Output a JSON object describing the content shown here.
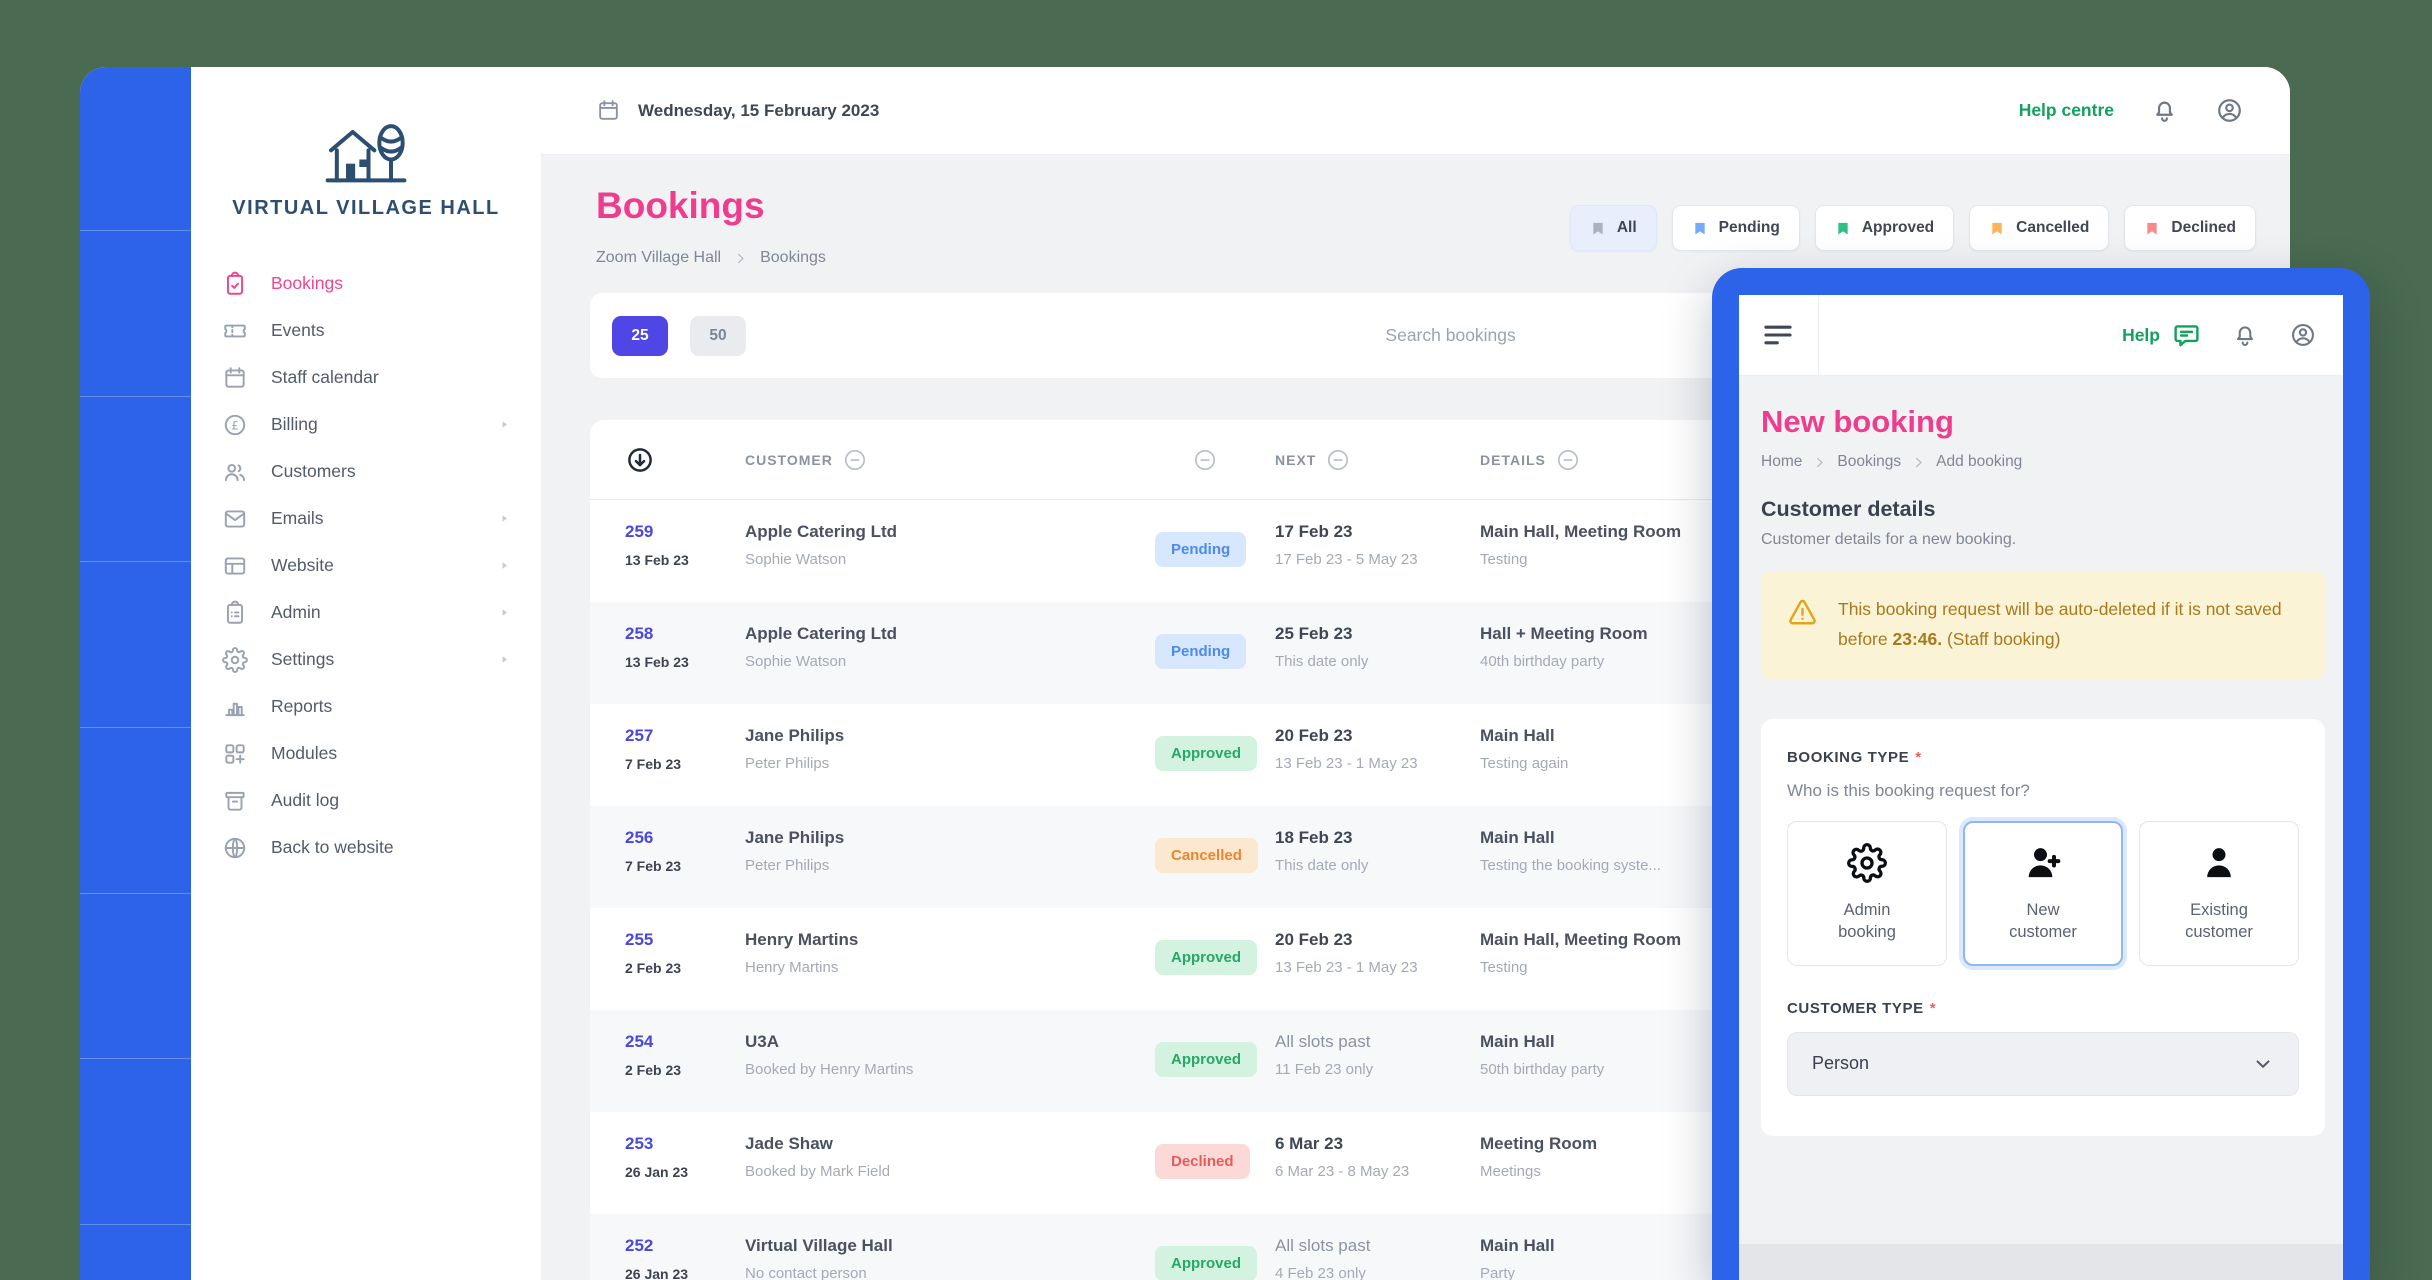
{
  "colors": {
    "background": "#4A6A51",
    "accent_blue": "#2D63E8",
    "accent_pink": "#EE3D8D",
    "accent_indigo": "#4F46E5",
    "accent_green": "#13A15F",
    "status_pending": "#4E8BEA",
    "status_approved": "#27A768",
    "status_cancelled": "#E8872F",
    "status_declined": "#E85B5B"
  },
  "topbar": {
    "date": "Wednesday, 15 February 2023",
    "help_centre": "Help centre",
    "icons": [
      "calendar-icon",
      "bell-icon",
      "user-circle-icon"
    ]
  },
  "sidebar": {
    "brand": "Virtual Village Hall",
    "logo_icon": "house-with-tree-icon",
    "items": [
      {
        "label": "Bookings",
        "icon": "clipboard-check",
        "active": true
      },
      {
        "label": "Events",
        "icon": "ticket"
      },
      {
        "label": "Staff calendar",
        "icon": "calendar"
      },
      {
        "label": "Billing",
        "icon": "pound-circle",
        "chevron": true
      },
      {
        "label": "Customers",
        "icon": "users"
      },
      {
        "label": "Emails",
        "icon": "mail",
        "chevron": true
      },
      {
        "label": "Website",
        "icon": "browser",
        "chevron": true
      },
      {
        "label": "Admin",
        "icon": "clipboard-list",
        "chevron": true
      },
      {
        "label": "Settings",
        "icon": "gear",
        "chevron": true
      },
      {
        "label": "Reports",
        "icon": "bar-chart"
      },
      {
        "label": "Modules",
        "icon": "grid-plus"
      },
      {
        "label": "Audit log",
        "icon": "archive"
      },
      {
        "label": "Back to website",
        "icon": "globe"
      }
    ]
  },
  "page": {
    "title": "Bookings",
    "breadcrumb": {
      "parent": "Zoom Village Hall",
      "current": "Bookings"
    },
    "filters": [
      {
        "label": "All",
        "color": "#AAB2BF",
        "selected": true
      },
      {
        "label": "Pending",
        "color": "#75A9F9"
      },
      {
        "label": "Approved",
        "color": "#2FC182"
      },
      {
        "label": "Cancelled",
        "color": "#F9B45C"
      },
      {
        "label": "Declined",
        "color": "#F58A8A"
      }
    ],
    "page_sizes": [
      {
        "label": "25",
        "selected": true
      },
      {
        "label": "50"
      }
    ],
    "search_placeholder": "Search bookings",
    "table": {
      "columns": {
        "customer": "CUSTOMER",
        "next": "NEXT",
        "details": "DETAILS"
      },
      "rows": [
        {
          "id": "259",
          "date": "13 Feb 23",
          "customer": "Apple Catering Ltd",
          "contact": "Sophie Watson",
          "status": "Pending",
          "status_key": "pending",
          "next": "17 Feb 23",
          "next_sub": "17 Feb 23 - 5 May 23",
          "details": "Main Hall, Meeting Room",
          "details_sub": "Testing"
        },
        {
          "id": "258",
          "date": "13 Feb 23",
          "customer": "Apple Catering Ltd",
          "contact": "Sophie Watson",
          "status": "Pending",
          "status_key": "pending",
          "next": "25 Feb 23",
          "next_sub": "This date only",
          "details": "Hall + Meeting Room",
          "details_sub": "40th birthday party"
        },
        {
          "id": "257",
          "date": "7 Feb 23",
          "customer": "Jane Philips",
          "contact": "Peter Philips",
          "status": "Approved",
          "status_key": "approved",
          "next": "20 Feb 23",
          "next_sub": "13 Feb 23 - 1 May 23",
          "details": "Main Hall",
          "details_sub": "Testing again"
        },
        {
          "id": "256",
          "date": "7 Feb 23",
          "customer": "Jane Philips",
          "contact": "Peter Philips",
          "status": "Cancelled",
          "status_key": "cancelled",
          "next": "18 Feb 23",
          "next_sub": "This date only",
          "details": "Main Hall",
          "details_sub": "Testing the booking syste..."
        },
        {
          "id": "255",
          "date": "2 Feb 23",
          "customer": "Henry Martins",
          "contact": "Henry Martins",
          "status": "Approved",
          "status_key": "approved",
          "next": "20 Feb 23",
          "next_sub": "13 Feb 23 - 1 May 23",
          "details": "Main Hall, Meeting Room",
          "details_sub": "Testing"
        },
        {
          "id": "254",
          "date": "2 Feb 23",
          "customer": "U3A",
          "contact": "Booked by Henry Martins",
          "status": "Approved",
          "status_key": "approved",
          "next": "All slots past",
          "next_muted": true,
          "next_sub": "11 Feb 23 only",
          "details": "Main Hall",
          "details_sub": "50th birthday party"
        },
        {
          "id": "253",
          "date": "26 Jan 23",
          "customer": "Jade Shaw",
          "contact": "Booked by Mark Field",
          "status": "Declined",
          "status_key": "declined",
          "next": "6 Mar 23",
          "next_sub": "6 Mar 23 - 8 May 23",
          "details": "Meeting Room",
          "details_sub": "Meetings"
        },
        {
          "id": "252",
          "date": "26 Jan 23",
          "customer": "Virtual Village Hall",
          "contact": "No contact person",
          "status": "Approved",
          "status_key": "approved",
          "next": "All slots past",
          "next_muted": true,
          "next_sub": "4 Feb 23 only",
          "details": "Main Hall",
          "details_sub": "Party"
        }
      ]
    }
  },
  "panel": {
    "help": "Help",
    "title": "New booking",
    "breadcrumb": {
      "a": "Home",
      "b": "Bookings",
      "c": "Add booking"
    },
    "section_title": "Customer details",
    "section_subtitle": "Customer details for a new booking.",
    "warning": {
      "pre": "This booking request will be auto-deleted if it is not saved before ",
      "time": "23:46.",
      "post": " (Staff booking)"
    },
    "booking_type": {
      "label": "BOOKING TYPE",
      "required": "*",
      "question": "Who is this booking request for?",
      "options": [
        {
          "label": "Admin booking",
          "icon": "gear-bold"
        },
        {
          "label": "New customer",
          "icon": "user-plus",
          "selected": true
        },
        {
          "label": "Existing customer",
          "icon": "user-solid"
        }
      ]
    },
    "customer_type": {
      "label": "CUSTOMER TYPE",
      "required": "*",
      "value": "Person"
    }
  }
}
